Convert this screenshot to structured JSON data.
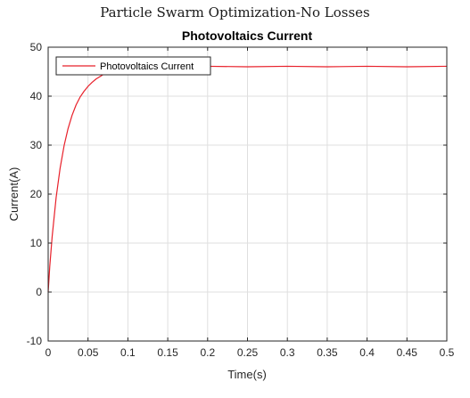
{
  "figure_title": "Particle Swarm Optimization-No Losses",
  "chart_data": {
    "type": "line",
    "title": "Photovoltaics Current",
    "xlabel": "Time(s)",
    "ylabel": "Current(A)",
    "xlim": [
      0,
      0.5
    ],
    "ylim": [
      -10,
      50
    ],
    "xticks": [
      "0",
      "0.05",
      "0.1",
      "0.15",
      "0.2",
      "0.25",
      "0.3",
      "0.35",
      "0.4",
      "0.45",
      "0.5"
    ],
    "yticks": [
      "-10",
      "0",
      "10",
      "20",
      "30",
      "40",
      "50"
    ],
    "grid": true,
    "legend": {
      "location": "top-left",
      "entries": [
        "Photovoltaics Current"
      ]
    },
    "series": [
      {
        "name": "Photovoltaics Current",
        "color": "#e8202a",
        "x": [
          0,
          0.002,
          0.005,
          0.01,
          0.015,
          0.02,
          0.025,
          0.03,
          0.035,
          0.04,
          0.045,
          0.05,
          0.055,
          0.06,
          0.065,
          0.07,
          0.075,
          0.08,
          0.09,
          0.1,
          0.12,
          0.15,
          0.2,
          0.25,
          0.3,
          0.35,
          0.4,
          0.45,
          0.5
        ],
        "y": [
          0,
          5.2,
          11.3,
          19.3,
          25.3,
          29.9,
          33.4,
          36.1,
          38.2,
          39.8,
          41.0,
          42.0,
          42.8,
          43.5,
          44.0,
          44.5,
          44.8,
          45.1,
          45.5,
          45.7,
          45.9,
          46.0,
          46.1,
          46.0,
          46.1,
          46.0,
          46.1,
          46.0,
          46.1
        ]
      }
    ]
  }
}
